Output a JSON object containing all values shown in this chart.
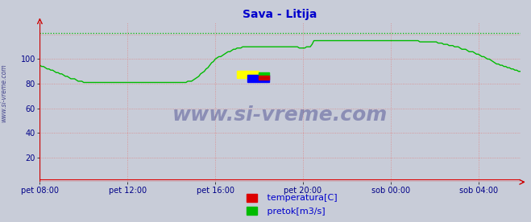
{
  "title": "Sava - Litija",
  "title_color": "#0000cc",
  "bg_color": "#c8ccd8",
  "plot_bg_color": "#c8ccd8",
  "grid_color": "#dd8888",
  "ylim": [
    0,
    130
  ],
  "yticks": [
    20,
    40,
    60,
    80,
    100
  ],
  "xtick_labels": [
    "pet 08:00",
    "pet 12:00",
    "pet 16:00",
    "pet 20:00",
    "sob 00:00",
    "sob 04:00"
  ],
  "xtick_positions": [
    0,
    48,
    96,
    144,
    192,
    240
  ],
  "n_points": 264,
  "pretok_color": "#00bb00",
  "temp_color": "#dd0000",
  "max_line_color": "#00bb00",
  "max_line_value": 121,
  "watermark_text": "www.si-vreme.com",
  "sidebar_text": "www.si-vreme.com",
  "legend_temp": " temperatura[C]",
  "legend_pretok": " pretok[m3/s]",
  "tick_color": "#000088",
  "axis_arrow_color": "#cc0000",
  "key_t": [
    0,
    8,
    16,
    24,
    36,
    48,
    72,
    80,
    84,
    90,
    96,
    102,
    108,
    114,
    120,
    126,
    132,
    138,
    144,
    148,
    150,
    156,
    160,
    168,
    180,
    192,
    200,
    216,
    228,
    240,
    252,
    263
  ],
  "key_v": [
    95,
    90,
    85,
    81,
    81,
    81,
    81,
    81,
    83,
    90,
    100,
    105,
    109,
    110,
    110,
    110,
    110,
    110,
    109,
    110,
    115,
    115,
    115,
    115,
    115,
    115,
    115,
    114,
    110,
    104,
    95,
    90
  ]
}
